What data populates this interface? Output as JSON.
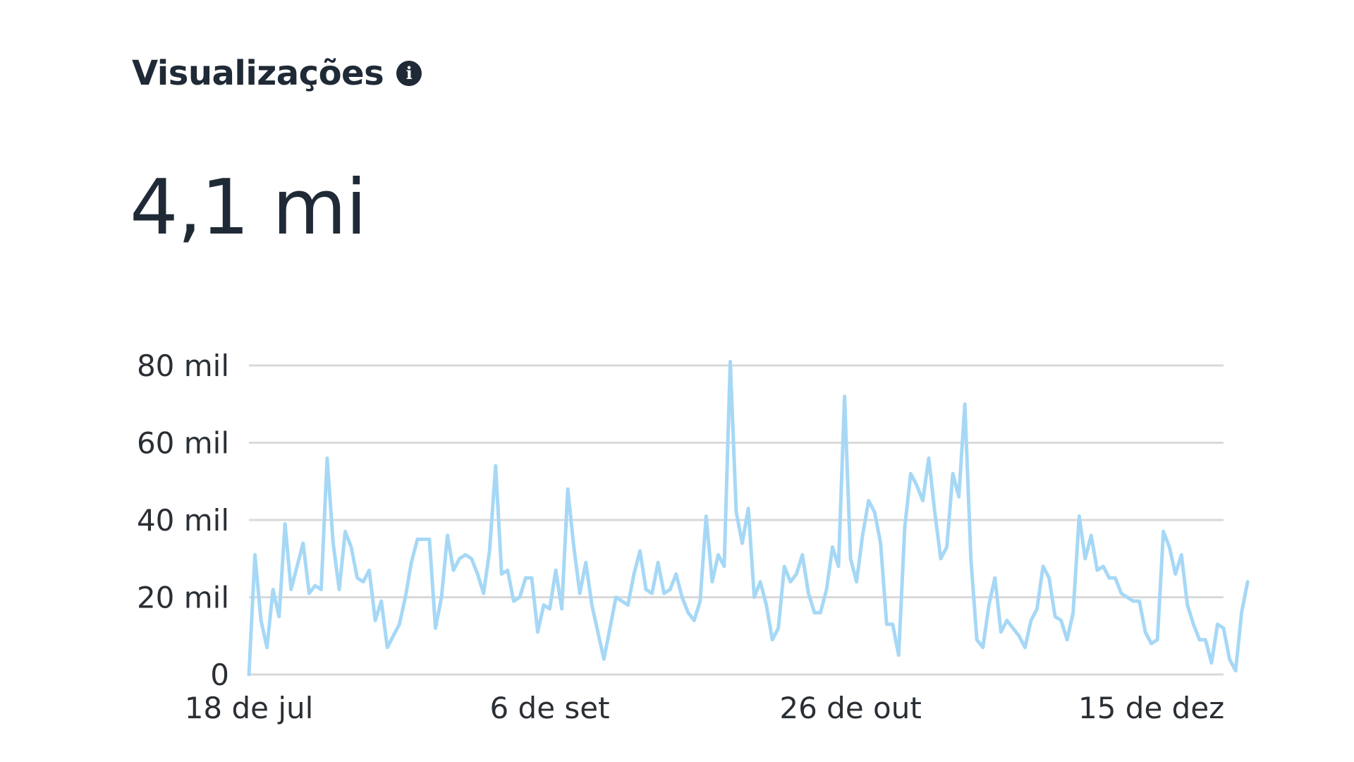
{
  "header": {
    "title": "Visualizações",
    "info_icon": "info-icon",
    "total_value": "4,1 mi"
  },
  "colors": {
    "line": "#a6d8f6",
    "grid": "#d9d9d9",
    "text": "#1f2a36"
  },
  "chart_data": {
    "type": "line",
    "ylim": [
      0,
      80000
    ],
    "y_ticks": [
      {
        "value": 0,
        "label": "0"
      },
      {
        "value": 20000,
        "label": "20 mil"
      },
      {
        "value": 40000,
        "label": "40 mil"
      },
      {
        "value": 60000,
        "label": "60 mil"
      },
      {
        "value": 80000,
        "label": "80 mil"
      }
    ],
    "x_ticks": [
      {
        "date": "07-18",
        "label": "18 de jul"
      },
      {
        "date": "09-06",
        "label": "6 de set"
      },
      {
        "date": "10-26",
        "label": "26 de out"
      },
      {
        "date": "12-15",
        "label": "15 de dez"
      }
    ],
    "x_start": "07-18",
    "x_end": "12-27",
    "grid": "horizontal",
    "series": [
      {
        "values": [
          0,
          31000,
          14000,
          7000,
          22000,
          15000,
          39000,
          22000,
          28000,
          34000,
          21000,
          23000,
          22000,
          56000,
          34000,
          22000,
          37000,
          33000,
          25000,
          24000,
          27000,
          14000,
          19000,
          7000,
          10000,
          13000,
          20000,
          29000,
          35000,
          35000,
          35000,
          12000,
          20000,
          36000,
          27000,
          30000,
          31000,
          30000,
          26000,
          21000,
          32000,
          54000,
          26000,
          27000,
          19000,
          20000,
          25000,
          25000,
          11000,
          18000,
          17000,
          27000,
          17000,
          48000,
          33000,
          21000,
          29000,
          18000,
          11000,
          4000,
          12000,
          20000,
          19000,
          18000,
          26000,
          32000,
          22000,
          21000,
          29000,
          21000,
          22000,
          26000,
          20000,
          16000,
          14000,
          19000,
          41000,
          24000,
          31000,
          28000,
          81000,
          42000,
          34000,
          43000,
          20000,
          24000,
          18000,
          9000,
          12000,
          28000,
          24000,
          26000,
          31000,
          21000,
          16000,
          16000,
          22000,
          33000,
          28000,
          72000,
          30000,
          24000,
          36000,
          45000,
          42000,
          34000,
          13000,
          13000,
          5000,
          38000,
          52000,
          49000,
          45000,
          56000,
          42000,
          30000,
          33000,
          52000,
          46000,
          70000,
          30000,
          9000,
          7000,
          18000,
          25000,
          11000,
          14000,
          12000,
          10000,
          7000,
          14000,
          17000,
          28000,
          25000,
          15000,
          14000,
          9000,
          16000,
          41000,
          30000,
          36000,
          27000,
          28000,
          25000,
          25000,
          21000,
          20000,
          19000,
          19000,
          11000,
          8000,
          9000,
          37000,
          33000,
          26000,
          31000,
          18000,
          13000,
          9000,
          9000,
          3000,
          13000,
          12000,
          4000,
          1000,
          16000,
          24000
        ]
      }
    ]
  }
}
